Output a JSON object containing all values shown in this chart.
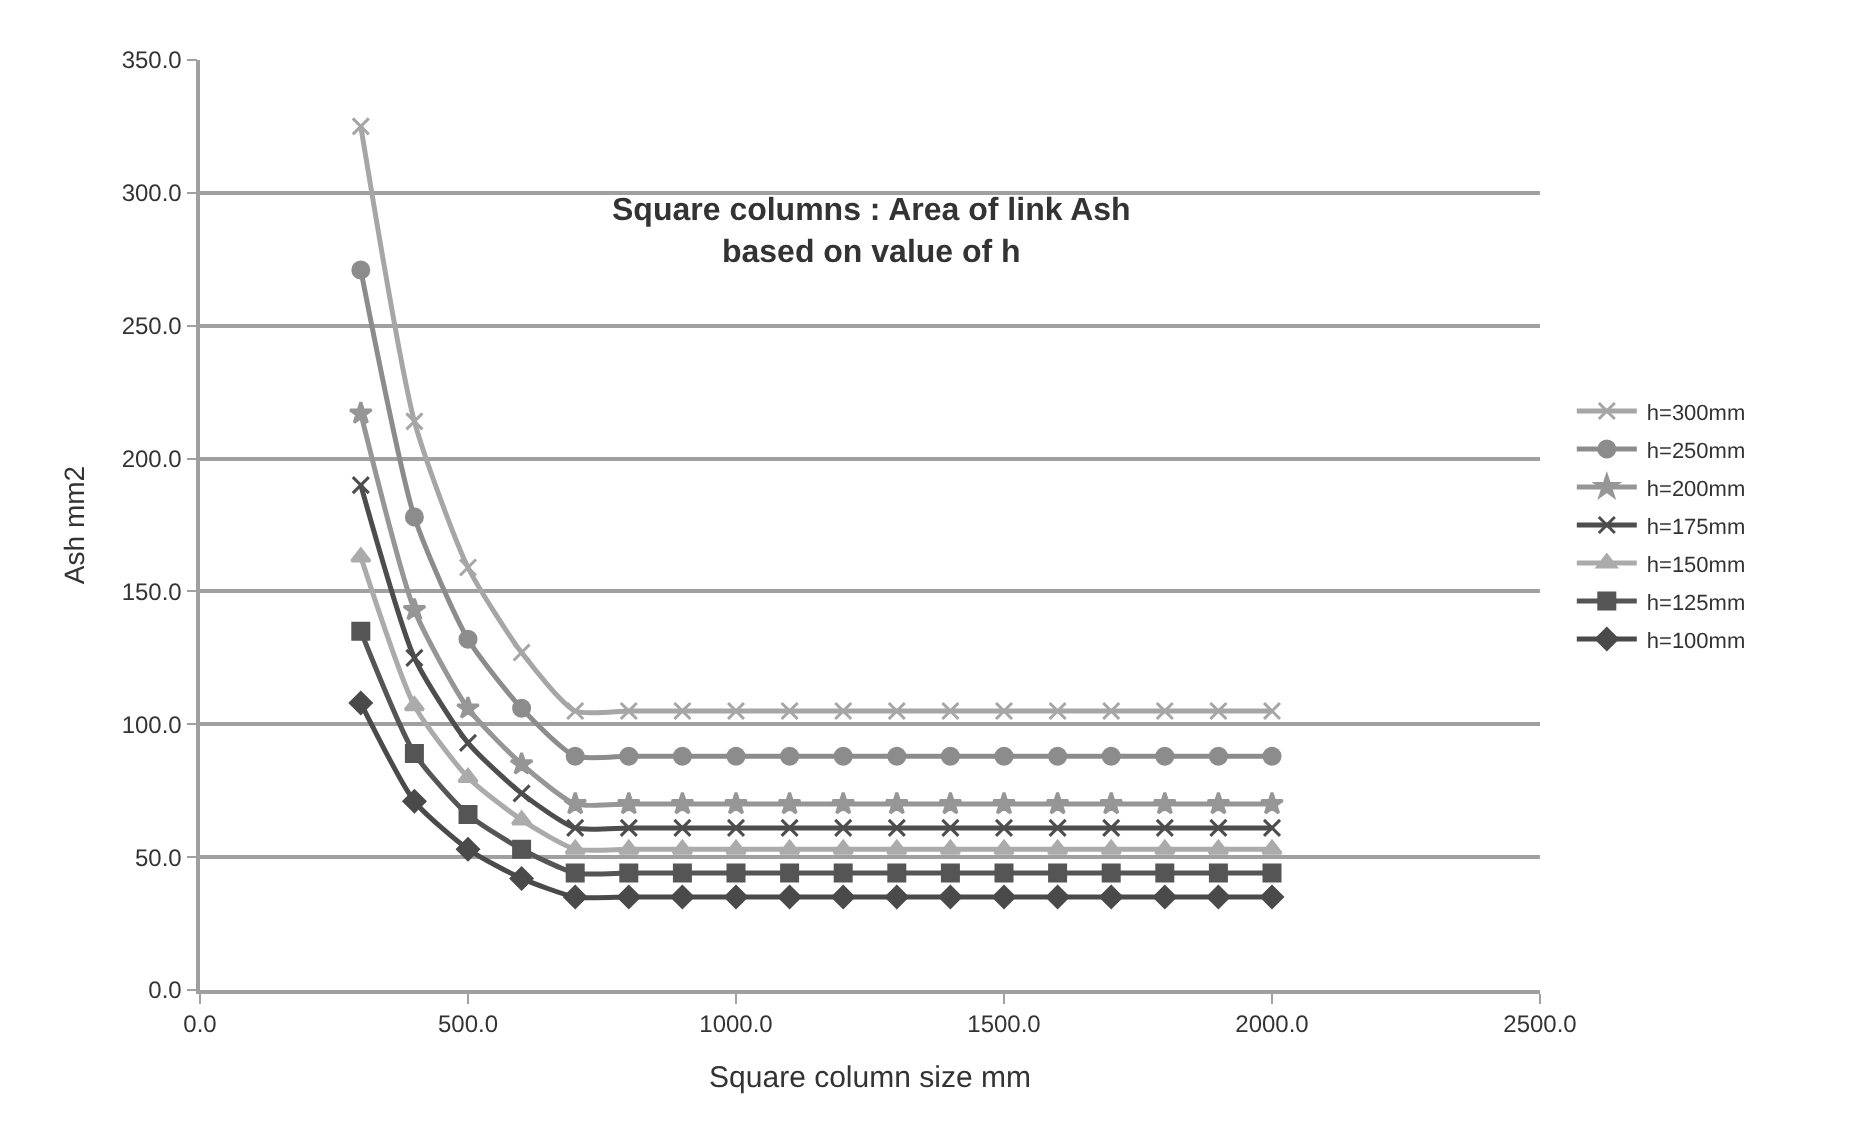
{
  "chart_data": {
    "type": "line",
    "title": "Square columns : Area of link Ash\nbased on value of h",
    "xlabel": "Square column size mm",
    "ylabel": "Ash mm2",
    "x": [
      300,
      400,
      500,
      600,
      700,
      800,
      900,
      1000,
      1100,
      1200,
      1300,
      1400,
      1500,
      1600,
      1700,
      1800,
      1900,
      2000
    ],
    "series": [
      {
        "name": "h=300mm",
        "color": "#a6a6a6",
        "marker": "cross",
        "values": [
          325,
          214,
          159,
          127,
          105,
          105,
          105,
          105,
          105,
          105,
          105,
          105,
          105,
          105,
          105,
          105,
          105,
          105
        ]
      },
      {
        "name": "h=250mm",
        "color": "#8c8c8c",
        "marker": "circle",
        "values": [
          271,
          178,
          132,
          106,
          88,
          88,
          88,
          88,
          88,
          88,
          88,
          88,
          88,
          88,
          88,
          88,
          88,
          88
        ]
      },
      {
        "name": "h=200mm",
        "color": "#969696",
        "marker": "star",
        "values": [
          217,
          143,
          106,
          85,
          70,
          70,
          70,
          70,
          70,
          70,
          70,
          70,
          70,
          70,
          70,
          70,
          70,
          70
        ]
      },
      {
        "name": "h=175mm",
        "color": "#4d4d4d",
        "marker": "cross",
        "values": [
          190,
          125,
          93,
          74,
          61,
          61,
          61,
          61,
          61,
          61,
          61,
          61,
          61,
          61,
          61,
          61,
          61,
          61
        ]
      },
      {
        "name": "h=150mm",
        "color": "#ababab",
        "marker": "triangle",
        "values": [
          163,
          107,
          80,
          64,
          53,
          53,
          53,
          53,
          53,
          53,
          53,
          53,
          53,
          53,
          53,
          53,
          53,
          53
        ]
      },
      {
        "name": "h=125mm",
        "color": "#555555",
        "marker": "square",
        "values": [
          135,
          89,
          66,
          53,
          44,
          44,
          44,
          44,
          44,
          44,
          44,
          44,
          44,
          44,
          44,
          44,
          44,
          44
        ]
      },
      {
        "name": "h=100mm",
        "color": "#4a4a4a",
        "marker": "diamond",
        "values": [
          108,
          71,
          53,
          42,
          35,
          35,
          35,
          35,
          35,
          35,
          35,
          35,
          35,
          35,
          35,
          35,
          35,
          35
        ]
      }
    ],
    "xlim": [
      0,
      2500
    ],
    "xticks": [
      {
        "value": 0,
        "label": "0.0"
      },
      {
        "value": 500,
        "label": "500.0"
      },
      {
        "value": 1000,
        "label": "1000.0"
      },
      {
        "value": 1500,
        "label": "1500.0"
      },
      {
        "value": 2000,
        "label": "2000.0"
      },
      {
        "value": 2500,
        "label": "2500.0"
      }
    ],
    "ylim": [
      0,
      350
    ],
    "yticks": [
      {
        "value": 0,
        "label": "0.0"
      },
      {
        "value": 50,
        "label": "50.0"
      },
      {
        "value": 100,
        "label": "100.0"
      },
      {
        "value": 150,
        "label": "150.0"
      },
      {
        "value": 200,
        "label": "200.0"
      },
      {
        "value": 250,
        "label": "250.0"
      },
      {
        "value": 300,
        "label": "300.0"
      },
      {
        "value": 350,
        "label": "350.0"
      }
    ],
    "grid": "y",
    "legend": "right",
    "line_style": "solid"
  }
}
